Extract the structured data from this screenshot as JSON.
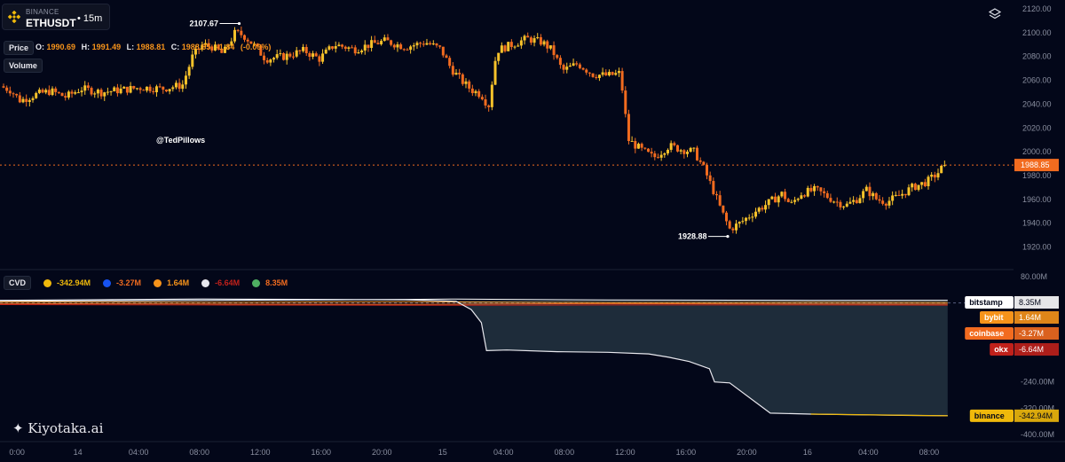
{
  "header": {
    "exchange": "BINANCE",
    "symbol": "ETHUSDT",
    "timeframe": "15m",
    "price_label": "Price",
    "volume_label": "Volume",
    "ohlc": {
      "o_label": "O:",
      "o": "1990.69",
      "h_label": "H:",
      "h": "1991.49",
      "l_label": "L:",
      "l": "1988.81",
      "c_label": "C:",
      "c": "1988.85",
      "chg": "-1.84",
      "chg_pct": "(-0.09%)"
    }
  },
  "watermark": {
    "handle": "@TedPillows",
    "brand": "Kiyotaka.ai"
  },
  "colors": {
    "bg": "#030719",
    "up": "#f7c22a",
    "down": "#f26b1f",
    "axis_text": "#8a8fa0",
    "price_line": "#f26b1f",
    "binance": "#f0b90b",
    "coinbase": "#f26b1f",
    "bybit": "#f7931a",
    "okx": "#c0211b",
    "bitstamp": "#ffffff"
  },
  "icons": {
    "layers": "layers-icon",
    "exchange_logo": "binance-logo-icon"
  },
  "chart_data": [
    {
      "type": "candlestick",
      "title": "ETHUSDT 15m",
      "xlabel": "",
      "ylabel": "",
      "ylim": [
        1910,
        2120
      ],
      "yticks": [
        1920,
        1940,
        1960,
        1980,
        2000,
        2020,
        2040,
        2060,
        2080,
        2100,
        2120
      ],
      "last_price": 1988.85,
      "last_price_label": "1988.85",
      "high_marker": {
        "label": "2107.67",
        "value": 2107.67,
        "x": 0.236
      },
      "low_marker": {
        "label": "1928.88",
        "value": 1928.88,
        "x": 0.718
      },
      "path": [
        [
          0.0,
          2055
        ],
        [
          0.01,
          2052
        ],
        [
          0.02,
          2043
        ],
        [
          0.035,
          2048
        ],
        [
          0.05,
          2051
        ],
        [
          0.065,
          2046
        ],
        [
          0.08,
          2053
        ],
        [
          0.1,
          2050
        ],
        [
          0.12,
          2052
        ],
        [
          0.14,
          2054
        ],
        [
          0.16,
          2053
        ],
        [
          0.18,
          2056
        ],
        [
          0.19,
          2080
        ],
        [
          0.2,
          2090
        ],
        [
          0.21,
          2088
        ],
        [
          0.22,
          2082
        ],
        [
          0.232,
          2100
        ],
        [
          0.24,
          2098
        ],
        [
          0.25,
          2090
        ],
        [
          0.262,
          2078
        ],
        [
          0.28,
          2080
        ],
        [
          0.3,
          2085
        ],
        [
          0.315,
          2078
        ],
        [
          0.33,
          2090
        ],
        [
          0.35,
          2086
        ],
        [
          0.365,
          2090
        ],
        [
          0.38,
          2093
        ],
        [
          0.4,
          2088
        ],
        [
          0.42,
          2092
        ],
        [
          0.435,
          2086
        ],
        [
          0.445,
          2070
        ],
        [
          0.455,
          2060
        ],
        [
          0.465,
          2052
        ],
        [
          0.475,
          2048
        ],
        [
          0.482,
          2038
        ],
        [
          0.49,
          2085
        ],
        [
          0.505,
          2090
        ],
        [
          0.52,
          2095
        ],
        [
          0.535,
          2092
        ],
        [
          0.545,
          2085
        ],
        [
          0.555,
          2068
        ],
        [
          0.57,
          2074
        ],
        [
          0.585,
          2065
        ],
        [
          0.6,
          2064
        ],
        [
          0.612,
          2066
        ],
        [
          0.62,
          2010
        ],
        [
          0.632,
          2002
        ],
        [
          0.645,
          1995
        ],
        [
          0.66,
          2005
        ],
        [
          0.672,
          2002
        ],
        [
          0.685,
          2000
        ],
        [
          0.695,
          1985
        ],
        [
          0.705,
          1965
        ],
        [
          0.712,
          1950
        ],
        [
          0.72,
          1935
        ],
        [
          0.73,
          1940
        ],
        [
          0.745,
          1950
        ],
        [
          0.76,
          1958
        ],
        [
          0.772,
          1965
        ],
        [
          0.78,
          1955
        ],
        [
          0.79,
          1965
        ],
        [
          0.805,
          1968
        ],
        [
          0.815,
          1963
        ],
        [
          0.825,
          1958
        ],
        [
          0.835,
          1955
        ],
        [
          0.845,
          1960
        ],
        [
          0.855,
          1968
        ],
        [
          0.865,
          1960
        ],
        [
          0.875,
          1958
        ],
        [
          0.885,
          1962
        ],
        [
          0.9,
          1970
        ],
        [
          0.915,
          1975
        ],
        [
          0.925,
          1982
        ],
        [
          0.932,
          1989
        ]
      ]
    },
    {
      "type": "line",
      "title": "CVD",
      "xlabel": "",
      "ylabel": "",
      "ylim": [
        -400,
        80
      ],
      "yticks_labels": [
        "80.00M",
        "-240.00M",
        "-320.00M",
        "-400.00M"
      ],
      "yticks": [
        80,
        -240,
        -320,
        -400
      ],
      "x_ticks": [
        "0:00",
        "14",
        "04:00",
        "08:00",
        "12:00",
        "16:00",
        "20:00",
        "15",
        "04:00",
        "08:00",
        "12:00",
        "16:00",
        "20:00",
        "16",
        "04:00",
        "08:00"
      ],
      "x_tick_pos": [
        0.008,
        0.068,
        0.128,
        0.188,
        0.248,
        0.308,
        0.368,
        0.428,
        0.488,
        0.548,
        0.608,
        0.668,
        0.728,
        0.788,
        0.848,
        0.908
      ],
      "legend": [
        {
          "name": "binance",
          "value": "-342.94M"
        },
        {
          "name": "coinbase",
          "value": "-3.27M"
        },
        {
          "name": "bybit",
          "value": "1.64M"
        },
        {
          "name": "okx",
          "value": "-6.64M"
        },
        {
          "name": "bitstamp",
          "value": "8.35M"
        }
      ],
      "series": [
        {
          "name": "binance",
          "value_now": -342.94,
          "x": [
            0.0,
            0.1,
            0.2,
            0.3,
            0.4,
            0.45,
            0.465,
            0.475,
            0.48,
            0.5,
            0.55,
            0.6,
            0.64,
            0.66,
            0.68,
            0.7,
            0.705,
            0.72,
            0.76,
            0.8,
            0.85,
            0.9,
            0.935
          ],
          "y": [
            8,
            10,
            12,
            11,
            10,
            5,
            -20,
            -60,
            -145,
            -143,
            -148,
            -150,
            -155,
            -165,
            -178,
            -200,
            -240,
            -243,
            -335,
            -338,
            -340,
            -342,
            -342.94
          ]
        },
        {
          "name": "coinbase",
          "value_now": -3.27,
          "x": [
            0.0,
            0.2,
            0.4,
            0.6,
            0.8,
            0.935
          ],
          "y": [
            -2,
            -3,
            -4,
            -2,
            -3,
            -3.27
          ]
        },
        {
          "name": "bybit",
          "value_now": 1.64,
          "x": [
            0.0,
            0.2,
            0.4,
            0.6,
            0.8,
            0.935
          ],
          "y": [
            3,
            2,
            4,
            1,
            2,
            1.64
          ]
        },
        {
          "name": "okx",
          "value_now": -6.64,
          "x": [
            0.0,
            0.2,
            0.4,
            0.6,
            0.8,
            0.935
          ],
          "y": [
            -5,
            -6,
            -7,
            -6,
            -6,
            -6.64
          ]
        },
        {
          "name": "bitstamp",
          "value_now": 8.35,
          "x": [
            0.0,
            0.2,
            0.35,
            0.45,
            0.6,
            0.8,
            0.935
          ],
          "y": [
            5,
            8,
            10,
            12,
            9,
            8,
            8.35
          ]
        }
      ]
    }
  ]
}
